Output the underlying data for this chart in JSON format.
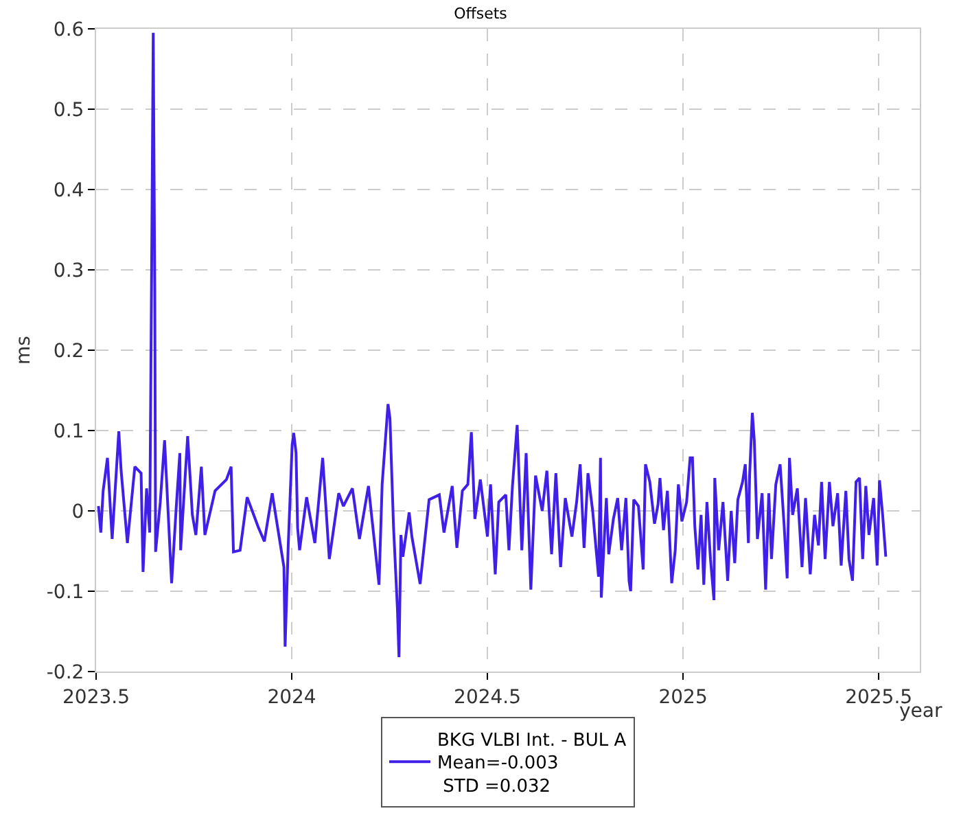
{
  "chart_data": {
    "type": "line",
    "title": "Offsets",
    "xlabel": "year",
    "ylabel": "ms",
    "xlim": [
      2023.5,
      2025.605
    ],
    "xticks": [
      2023.5,
      2024,
      2024.5,
      2025,
      2025.5
    ],
    "ylim": [
      -0.2,
      0.6
    ],
    "yticks": [
      -0.2,
      -0.1,
      0,
      0.1,
      0.2,
      0.3,
      0.4,
      0.5,
      0.6
    ],
    "grid": true,
    "legend": "bottom",
    "marker": "none",
    "line_style": "solid",
    "series": [
      {
        "name": "BKG VLBI Int. - BUL A\nMean=-0.003\n STD =0.032",
        "color": "#4020e8",
        "x": [
          2023.506,
          2023.512,
          2023.518,
          2023.529,
          2023.541,
          2023.558,
          2023.564,
          2023.58,
          2023.599,
          2023.615,
          2023.62,
          2023.629,
          2023.637,
          2023.643,
          2023.646,
          2023.65,
          2023.652,
          2023.664,
          2023.675,
          2023.693,
          2023.705,
          2023.714,
          2023.716,
          2023.734,
          2023.746,
          2023.755,
          2023.769,
          2023.778,
          2023.804,
          2023.833,
          2023.845,
          2023.851,
          2023.868,
          2023.886,
          2023.915,
          2023.93,
          2023.95,
          2023.98,
          2023.983,
          2023.991,
          2024.001,
          2024.005,
          2024.011,
          2024.015,
          2024.02,
          2024.038,
          2024.059,
          2024.079,
          2024.096,
          2024.12,
          2024.132,
          2024.155,
          2024.173,
          2024.196,
          2024.223,
          2024.231,
          2024.246,
          2024.251,
          2024.256,
          2024.26,
          2024.27,
          2024.274,
          2024.279,
          2024.284,
          2024.3,
          2024.307,
          2024.328,
          2024.351,
          2024.377,
          2024.389,
          2024.41,
          2024.422,
          2024.436,
          2024.45,
          2024.459,
          2024.468,
          2024.482,
          2024.5,
          2024.508,
          2024.52,
          2024.529,
          2024.547,
          2024.555,
          2024.564,
          2024.576,
          2024.588,
          2024.599,
          2024.611,
          2024.623,
          2024.64,
          2024.652,
          2024.664,
          2024.675,
          2024.687,
          2024.699,
          2024.716,
          2024.728,
          2024.737,
          2024.747,
          2024.757,
          2024.769,
          2024.784,
          2024.789,
          2024.791,
          2024.804,
          2024.81,
          2024.822,
          2024.833,
          2024.843,
          2024.854,
          2024.862,
          2024.866,
          2024.874,
          2024.886,
          2024.898,
          2024.904,
          2024.915,
          2024.927,
          2024.936,
          2024.941,
          2024.95,
          2024.96,
          2024.971,
          2024.98,
          2024.988,
          2024.997,
          2025.009,
          2025.018,
          2025.024,
          2025.03,
          2025.038,
          2025.046,
          2025.053,
          2025.061,
          2025.07,
          2025.079,
          2025.081,
          2025.091,
          2025.102,
          2025.114,
          2025.123,
          2025.132,
          2025.14,
          2025.152,
          2025.159,
          2025.167,
          2025.17,
          2025.177,
          2025.182,
          2025.19,
          2025.202,
          2025.211,
          2025.219,
          2025.226,
          2025.237,
          2025.248,
          2025.258,
          2025.266,
          2025.272,
          2025.28,
          2025.292,
          2025.304,
          2025.313,
          2025.325,
          2025.336,
          2025.346,
          2025.354,
          2025.363,
          2025.374,
          2025.383,
          2025.395,
          2025.404,
          2025.416,
          2025.424,
          2025.433,
          2025.442,
          2025.451,
          2025.459,
          2025.467,
          2025.475,
          2025.487,
          2025.496,
          2025.502,
          2025.51,
          2025.518
        ],
        "values": [
          0.006,
          -0.027,
          0.025,
          0.066,
          -0.035,
          0.099,
          0.05,
          -0.04,
          0.055,
          0.047,
          -0.076,
          0.028,
          -0.027,
          0.377,
          0.595,
          0.27,
          -0.051,
          0.011,
          0.088,
          -0.09,
          0.006,
          0.072,
          -0.049,
          0.093,
          -0.005,
          -0.03,
          0.055,
          -0.03,
          0.025,
          0.039,
          0.055,
          -0.051,
          -0.049,
          0.017,
          -0.021,
          -0.038,
          0.022,
          -0.07,
          -0.169,
          -0.043,
          0.082,
          0.097,
          0.072,
          -0.021,
          -0.049,
          0.017,
          -0.04,
          0.066,
          -0.06,
          0.022,
          0.006,
          0.028,
          -0.035,
          0.031,
          -0.092,
          0.033,
          0.133,
          0.115,
          0.04,
          -0.019,
          -0.122,
          -0.182,
          -0.03,
          -0.057,
          -0.002,
          -0.032,
          -0.091,
          0.014,
          0.02,
          -0.027,
          0.031,
          -0.046,
          0.025,
          0.033,
          0.098,
          -0.01,
          0.039,
          -0.032,
          0.033,
          -0.079,
          0.011,
          0.02,
          -0.049,
          0.031,
          0.107,
          -0.049,
          0.072,
          -0.098,
          0.044,
          0,
          0.05,
          -0.054,
          0.047,
          -0.07,
          0.016,
          -0.032,
          0.011,
          0.058,
          -0.046,
          0.047,
          0,
          -0.082,
          0.066,
          -0.108,
          0.016,
          -0.054,
          -0.01,
          0.016,
          -0.049,
          0.016,
          -0.087,
          -0.1,
          0.014,
          0.006,
          -0.073,
          0.058,
          0.036,
          -0.016,
          0.008,
          0.041,
          -0.024,
          0.025,
          -0.09,
          -0.049,
          0.033,
          -0.013,
          0.011,
          0.066,
          0.066,
          -0.019,
          -0.073,
          -0.005,
          -0.092,
          0.011,
          -0.06,
          -0.111,
          0.041,
          -0.049,
          0.011,
          -0.087,
          0,
          -0.065,
          0.014,
          0.036,
          0.058,
          -0.04,
          0.044,
          0.122,
          0.088,
          -0.035,
          0.022,
          -0.098,
          0.022,
          -0.06,
          0.033,
          0.058,
          -0.016,
          -0.084,
          0.066,
          -0.005,
          0.028,
          -0.07,
          0.016,
          -0.079,
          -0.005,
          -0.043,
          0.036,
          -0.06,
          0.036,
          -0.019,
          0.022,
          -0.068,
          0.025,
          -0.06,
          -0.087,
          0.036,
          0.041,
          -0.06,
          0.031,
          -0.03,
          0.016,
          -0.068,
          0.038,
          -0.005,
          -0.057
        ]
      }
    ]
  }
}
